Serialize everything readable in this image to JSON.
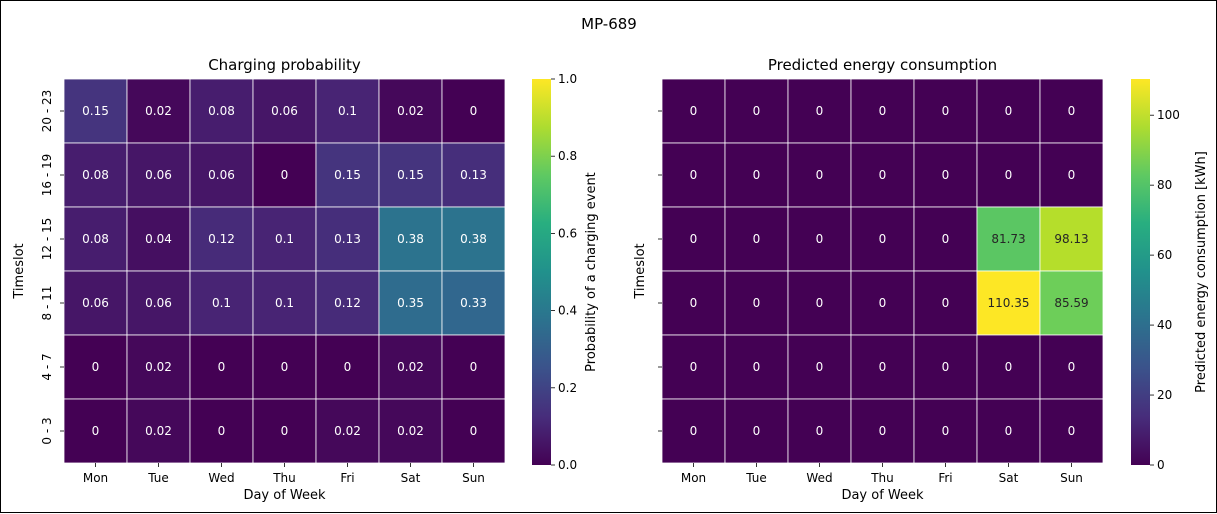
{
  "figure_title": "MP-689",
  "chart_data": [
    {
      "type": "heatmap",
      "title": "Charging probability",
      "xlabel": "Day of Week",
      "ylabel": "Timeslot",
      "x": [
        "Mon",
        "Tue",
        "Wed",
        "Thu",
        "Fri",
        "Sat",
        "Sun"
      ],
      "y": [
        "20 - 23",
        "16 - 19",
        "12 - 15",
        "8 - 11",
        "4 - 7",
        "0 - 3"
      ],
      "values": [
        [
          0.15,
          0.02,
          0.08,
          0.06,
          0.1,
          0.02,
          0
        ],
        [
          0.08,
          0.06,
          0.06,
          0,
          0.15,
          0.15,
          0.13
        ],
        [
          0.08,
          0.04,
          0.12,
          0.1,
          0.13,
          0.38,
          0.38
        ],
        [
          0.06,
          0.06,
          0.1,
          0.1,
          0.12,
          0.35,
          0.33
        ],
        [
          0,
          0.02,
          0,
          0,
          0,
          0.02,
          0
        ],
        [
          0,
          0.02,
          0,
          0,
          0.02,
          0.02,
          0
        ]
      ],
      "colorscale": "viridis",
      "colorbar": {
        "label": "Probability of a charging event",
        "range": [
          0,
          1
        ],
        "ticks": [
          0.0,
          0.2,
          0.4,
          0.6,
          0.8,
          1.0
        ],
        "tick_labels": [
          "0.0",
          "0.2",
          "0.4",
          "0.6",
          "0.8",
          "1.0"
        ]
      },
      "show_ytick_labels": true
    },
    {
      "type": "heatmap",
      "title": "Predicted energy consumption",
      "xlabel": "Day of Week",
      "ylabel": "Timeslot",
      "x": [
        "Mon",
        "Tue",
        "Wed",
        "Thu",
        "Fri",
        "Sat",
        "Sun"
      ],
      "y": [
        "20 - 23",
        "16 - 19",
        "12 - 15",
        "8 - 11",
        "4 - 7",
        "0 - 3"
      ],
      "values": [
        [
          0,
          0,
          0,
          0,
          0,
          0,
          0
        ],
        [
          0,
          0,
          0,
          0,
          0,
          0,
          0
        ],
        [
          0,
          0,
          0,
          0,
          0,
          81.73,
          98.13
        ],
        [
          0,
          0,
          0,
          0,
          0,
          110.35,
          85.59
        ],
        [
          0,
          0,
          0,
          0,
          0,
          0,
          0
        ],
        [
          0,
          0,
          0,
          0,
          0,
          0,
          0
        ]
      ],
      "colorscale": "viridis",
      "colorbar": {
        "label": "Predicted energy consumption [kWh]",
        "range": [
          0,
          110.35
        ],
        "ticks": [
          0,
          20,
          40,
          60,
          80,
          100
        ],
        "tick_labels": [
          "0",
          "20",
          "40",
          "60",
          "80",
          "100"
        ]
      },
      "show_ytick_labels": false
    }
  ]
}
